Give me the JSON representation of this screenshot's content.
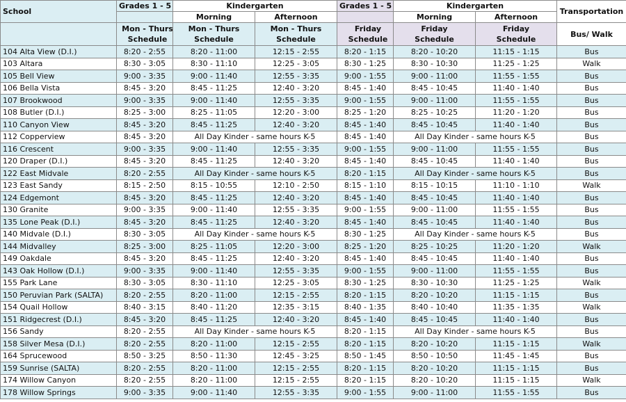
{
  "header": {
    "school": "School",
    "grades_mt": "Grades 1 - 5",
    "kinder_mt": "Kindergarten",
    "morning_mt": "Morning",
    "afternoon_mt": "Afternoon",
    "grades_fri": "Grades 1 - 5",
    "kinder_fri": "Kindergarten",
    "morning_fri": "Morning",
    "afternoon_fri": "Afternoon",
    "transportation": "Transportation",
    "sub": [
      "Mon - Thurs Schedule",
      "Mon - Thurs Schedule",
      "Mon - Thurs Schedule",
      "Friday Schedule",
      "Friday Schedule",
      "Friday Schedule",
      "Bus/ Walk"
    ]
  },
  "table": {
    "rows": [
      [
        "104 Alta View (D.I.)",
        "8:20 - 2:55",
        "8:20 - 11:00",
        "12:15 - 2:55",
        "8:20 - 1:15",
        "8:20 - 10:20",
        "11:15 - 1:15",
        "Bus"
      ],
      [
        "103 Altara",
        "8:30 - 3:05",
        "8:30 - 11:10",
        "12:25 - 3:05",
        "8:30 - 1:25",
        "8:30 - 10:30",
        "11:25 - 1:25",
        "Walk"
      ],
      [
        "105 Bell View",
        "9:00 - 3:35",
        "9:00 - 11:40",
        "12:55 - 3:35",
        "9:00 - 1:55",
        "9:00 - 11:00",
        "11:55 - 1:55",
        "Bus"
      ],
      [
        "106 Bella Vista",
        "8:45 - 3:20",
        "8:45 - 11:25",
        "12:40 - 3:20",
        "8:45 - 1:40",
        "8:45 - 10:45",
        "11:40 - 1:40",
        "Bus"
      ],
      [
        "107 Brookwood",
        "9:00 - 3:35",
        "9:00 - 11:40",
        "12:55 - 3:35",
        "9:00 - 1:55",
        "9:00 - 11:00",
        "11:55 - 1:55",
        "Bus"
      ],
      [
        "108 Butler (D.I.)",
        "8:25 - 3:00",
        "8:25 - 11:05",
        "12:20 - 3:00",
        "8:25 - 1:20",
        "8:25 - 10:25",
        "11:20 - 1:20",
        "Bus"
      ],
      [
        "110 Canyon View",
        "8:45 - 3:20",
        "8:45 - 11:25",
        "12:40 - 3:20",
        "8:45 - 1:40",
        "8:45 - 10:45",
        "11:40 - 1:40",
        "Bus"
      ],
      [
        "112 Copperview",
        "8:45 - 3:20",
        "All Day Kinder - same hours K-5",
        "8:45 - 1:40",
        "All Day Kinder - same hours K-5",
        "Bus"
      ],
      [
        "116 Crescent",
        "9:00 - 3:35",
        "9:00 - 11:40",
        "12:55 - 3:35",
        "9:00 - 1:55",
        "9:00 - 11:00",
        "11:55 - 1:55",
        "Bus"
      ],
      [
        "120 Draper (D.I.)",
        "8:45 - 3:20",
        "8:45 - 11:25",
        "12:40 - 3:20",
        "8:45 - 1:40",
        "8:45 - 10:45",
        "11:40 - 1:40",
        "Bus"
      ],
      [
        "122 East Midvale",
        "8:20 - 2:55",
        "All Day Kinder - same hours K-5",
        "8:20 - 1:15",
        "All Day Kinder - same hours K-5",
        "Bus"
      ],
      [
        "123 East Sandy",
        "8:15 - 2:50",
        "8:15 - 10:55",
        "12:10 - 2:50",
        "8:15 - 1:10",
        "8:15 - 10:15",
        "11:10 - 1:10",
        "Walk"
      ],
      [
        "124 Edgemont",
        "8:45 - 3:20",
        "8:45 - 11:25",
        "12:40 - 3:20",
        "8:45 - 1:40",
        "8:45 - 10:45",
        "11:40 - 1:40",
        "Bus"
      ],
      [
        "130 Granite",
        "9:00 - 3:35",
        "9:00 - 11:40",
        "12:55 - 3:35",
        "9:00 - 1:55",
        "9:00 - 11:00",
        "11:55 - 1:55",
        "Bus"
      ],
      [
        "135 Lone Peak  (D.I.)",
        "8:45 - 3:20",
        "8:45 - 11:25",
        "12:40 - 3:20",
        "8:45 - 1:40",
        "8:45 - 10:45",
        "11:40 - 1:40",
        "Bus"
      ],
      [
        "140 Midvale (D.I.)",
        "8:30 - 3:05",
        "All Day Kinder - same hours K-5",
        "8:30 - 1:25",
        "All Day Kinder - same hours K-5",
        "Bus"
      ],
      [
        "144 Midvalley",
        "8:25 - 3:00",
        "8:25 - 11:05",
        "12:20 - 3:00",
        "8:25 - 1:20",
        "8:25 - 10:25",
        "11:20 - 1:20",
        "Walk"
      ],
      [
        "149 Oakdale",
        "8:45 - 3:20",
        "8:45 - 11:25",
        "12:40 - 3:20",
        "8:45 - 1:40",
        "8:45 - 10:45",
        "11:40 - 1:40",
        "Bus"
      ],
      [
        "143 Oak Hollow (D.I.)",
        "9:00 - 3:35",
        "9:00 - 11:40",
        "12:55 - 3:35",
        "9:00 - 1:55",
        "9:00 - 11:00",
        "11:55 - 1:55",
        "Bus"
      ],
      [
        "155 Park Lane",
        "8:30 - 3:05",
        "8:30 - 11:10",
        "12:25 - 3:05",
        "8:30 - 1:25",
        "8:30 - 10:30",
        "11:25 - 1:25",
        "Walk"
      ],
      [
        "150 Peruvian Park (SALTA)",
        "8:20 - 2:55",
        "8:20 - 11:00",
        "12:15 - 2:55",
        "8:20 - 1:15",
        "8:20 - 10:20",
        "11:15 - 1:15",
        "Bus"
      ],
      [
        "154 Quail Hollow",
        "8:40 - 3:15",
        "8:40 - 11:20",
        "12:35 - 3:15",
        "8:40 - 1:35",
        "8:40 - 10:40",
        "11:35 - 1:35",
        "Walk"
      ],
      [
        "151 Ridgecrest (D.I.)",
        "8:45 - 3:20",
        "8:45 - 11:25",
        "12:40 - 3:20",
        "8:45 - 1:40",
        "8:45 - 10:45",
        "11:40 - 1:40",
        "Bus"
      ],
      [
        "156 Sandy",
        "8:20 - 2:55",
        "All Day Kinder - same hours K-5",
        "8:20 - 1:15",
        "All Day Kinder - same hours K-5",
        "Bus"
      ],
      [
        "158 Silver Mesa (D.I.)",
        "8:20 - 2:55",
        "8:20 - 11:00",
        "12:15 - 2:55",
        "8:20 - 1:15",
        "8:20 - 10:20",
        "11:15 - 1:15",
        "Walk"
      ],
      [
        "164 Sprucewood",
        "8:50 - 3:25",
        "8:50 - 11:30",
        "12:45 - 3:25",
        "8:50 - 1:45",
        "8:50 - 10:50",
        "11:45 - 1:45",
        "Bus"
      ],
      [
        "159 Sunrise (SALTA)",
        "8:20 - 2:55",
        "8:20 - 11:00",
        "12:15 - 2:55",
        "8:20 - 1:15",
        "8:20 - 10:20",
        "11:15 - 1:15",
        "Bus"
      ],
      [
        "174 Willow Canyon",
        "8:20 - 2:55",
        "8:20 - 11:00",
        "12:15 - 2:55",
        "8:20 - 1:15",
        "8:20 - 10:20",
        "11:15 - 1:15",
        "Walk"
      ],
      [
        "178 Willow Springs",
        "9:00 - 3:35",
        "9:00 - 11:40",
        "12:55 - 3:35",
        "9:00 - 1:55",
        "9:00 - 11:00",
        "11:55 - 1:55",
        "Bus"
      ]
    ]
  }
}
